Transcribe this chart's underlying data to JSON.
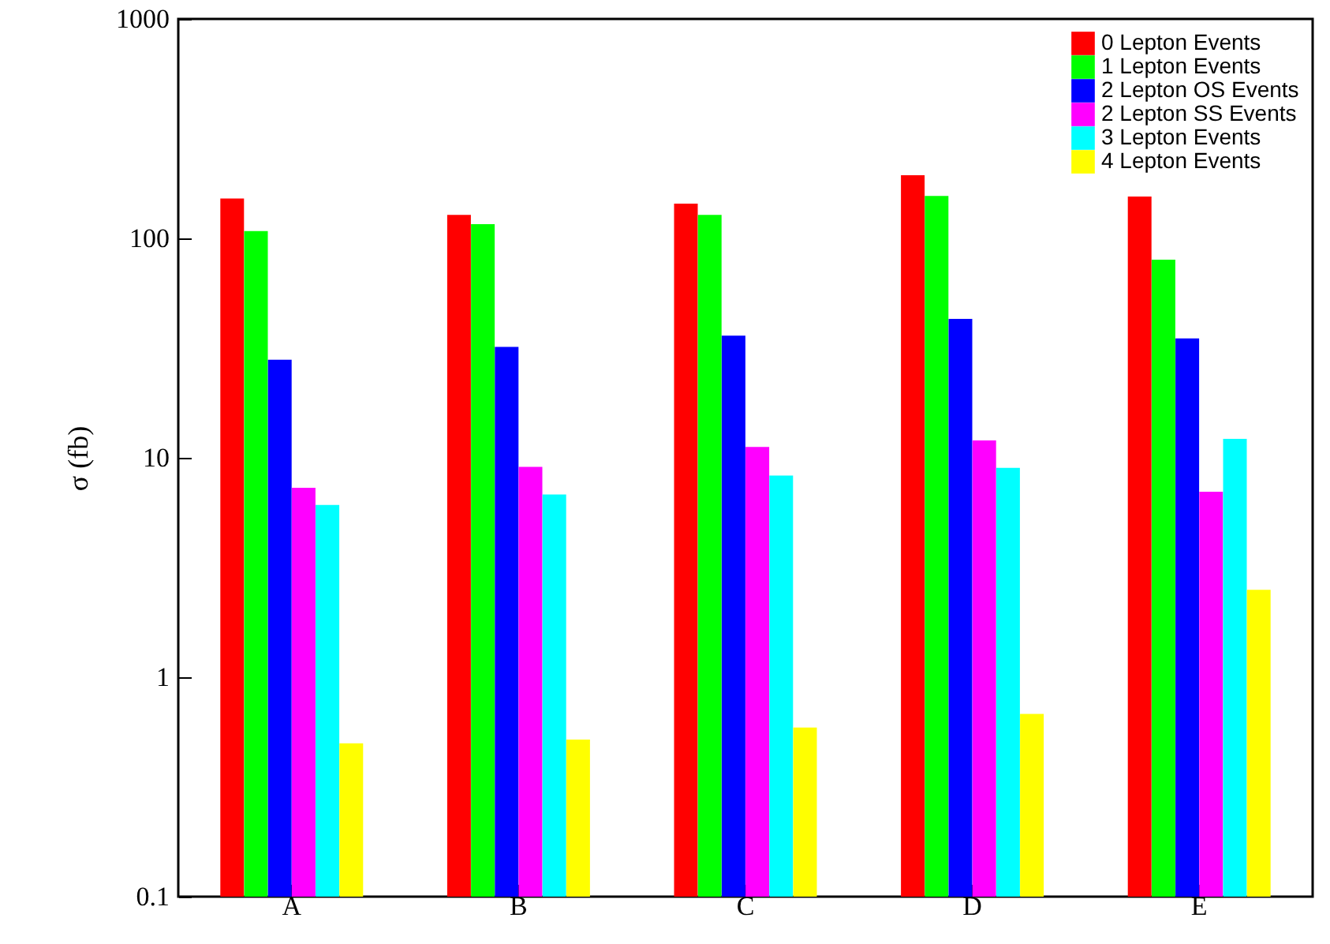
{
  "chart_data": {
    "type": "bar",
    "ylabel": "σ (fb)",
    "categories": [
      "A",
      "B",
      "C",
      "D",
      "E"
    ],
    "series": [
      {
        "name": "0 Lepton Events",
        "color": "#ff0000",
        "values": [
          152,
          128,
          144,
          194,
          155
        ]
      },
      {
        "name": "1 Lepton Events",
        "color": "#00ff00",
        "values": [
          108,
          116,
          128,
          156,
          80
        ]
      },
      {
        "name": "2 Lepton OS Events",
        "color": "#0000ff",
        "values": [
          28,
          32,
          36,
          43,
          35
        ]
      },
      {
        "name": "2 Lepton SS Events",
        "color": "#ff00ff",
        "values": [
          7.3,
          9.1,
          11.2,
          12,
          7
        ]
      },
      {
        "name": "3 Lepton Events",
        "color": "#00ffff",
        "values": [
          6.1,
          6.8,
          8.3,
          9,
          12.2
        ]
      },
      {
        "name": "4 Lepton Events",
        "color": "#ffff00",
        "values": [
          0.5,
          0.52,
          0.59,
          0.68,
          2.5
        ]
      }
    ],
    "log": true,
    "ylim": [
      0.1,
      1000
    ],
    "yticks": [
      0.1,
      1,
      10,
      100,
      1000
    ],
    "grid": false,
    "legend": "top right"
  }
}
